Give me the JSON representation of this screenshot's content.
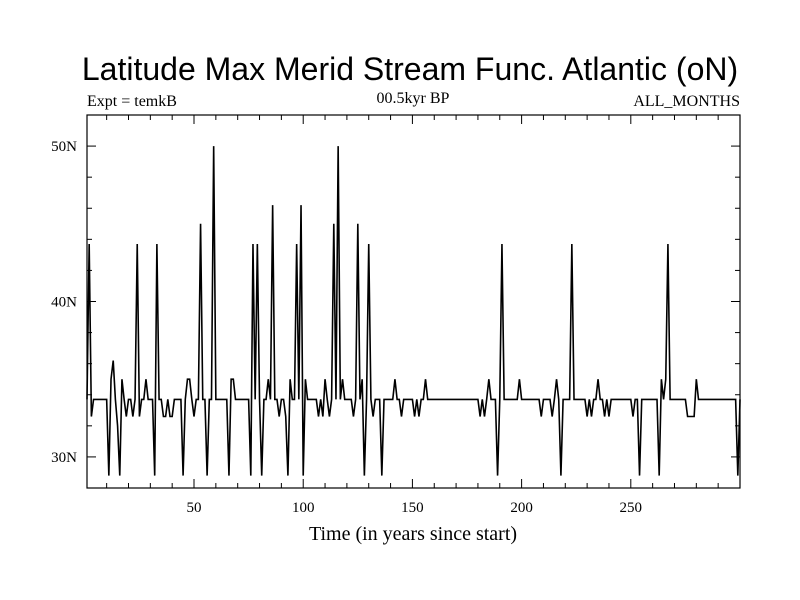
{
  "chart_data": {
    "type": "line",
    "title": "Latitude Max Merid Stream Func. Atlantic (oN)",
    "subtitle_left": "Expt = temkB",
    "subtitle_center": "00.5kyr BP",
    "subtitle_right": "ALL_MONTHS",
    "xlabel": "Time (in years since start)",
    "ylabel": "",
    "xlim": [
      1,
      300
    ],
    "ylim": [
      28,
      52
    ],
    "x_ticks": [
      {
        "value": 50,
        "label": "50"
      },
      {
        "value": 100,
        "label": "100"
      },
      {
        "value": 150,
        "label": "150"
      },
      {
        "value": 200,
        "label": "200"
      },
      {
        "value": 250,
        "label": "250"
      }
    ],
    "y_ticks": [
      {
        "value": 30,
        "label": "30N"
      },
      {
        "value": 40,
        "label": "40N"
      },
      {
        "value": 50,
        "label": "50N"
      }
    ],
    "series": [
      {
        "name": "Latitude Max Merid Stream Func. Atlantic",
        "color": "#000000",
        "points": [
          [
            1,
            33.7
          ],
          [
            2,
            43.7
          ],
          [
            3,
            32.6
          ],
          [
            4,
            33.7
          ],
          [
            5,
            33.7
          ],
          [
            10,
            33.7
          ],
          [
            11,
            28.8
          ],
          [
            12,
            35.0
          ],
          [
            13,
            36.2
          ],
          [
            14,
            33.7
          ],
          [
            15,
            32.0
          ],
          [
            16,
            28.8
          ],
          [
            17,
            35.0
          ],
          [
            18,
            33.7
          ],
          [
            19,
            32.6
          ],
          [
            20,
            33.7
          ],
          [
            21,
            33.7
          ],
          [
            22,
            32.6
          ],
          [
            23,
            33.7
          ],
          [
            24,
            43.7
          ],
          [
            25,
            32.6
          ],
          [
            26,
            33.7
          ],
          [
            27,
            33.7
          ],
          [
            28,
            35.0
          ],
          [
            29,
            33.7
          ],
          [
            30,
            33.7
          ],
          [
            31,
            33.7
          ],
          [
            32,
            28.8
          ],
          [
            33,
            43.7
          ],
          [
            34,
            33.7
          ],
          [
            35,
            33.7
          ],
          [
            36,
            32.6
          ],
          [
            37,
            32.6
          ],
          [
            38,
            33.7
          ],
          [
            39,
            32.6
          ],
          [
            40,
            32.6
          ],
          [
            41,
            33.7
          ],
          [
            42,
            33.7
          ],
          [
            43,
            33.7
          ],
          [
            44,
            33.7
          ],
          [
            45,
            28.8
          ],
          [
            46,
            33.7
          ],
          [
            47,
            35.0
          ],
          [
            48,
            35.0
          ],
          [
            49,
            33.7
          ],
          [
            50,
            32.6
          ],
          [
            51,
            33.7
          ],
          [
            52,
            33.7
          ],
          [
            53,
            45.0
          ],
          [
            54,
            33.7
          ],
          [
            55,
            33.7
          ],
          [
            56,
            28.8
          ],
          [
            57,
            33.7
          ],
          [
            58,
            33.7
          ],
          [
            59,
            50.0
          ],
          [
            60,
            33.7
          ],
          [
            61,
            33.7
          ],
          [
            62,
            33.7
          ],
          [
            63,
            33.7
          ],
          [
            64,
            33.7
          ],
          [
            65,
            33.7
          ],
          [
            66,
            28.8
          ],
          [
            67,
            35.0
          ],
          [
            68,
            35.0
          ],
          [
            69,
            33.7
          ],
          [
            70,
            33.7
          ],
          [
            71,
            33.7
          ],
          [
            72,
            33.7
          ],
          [
            73,
            33.7
          ],
          [
            74,
            33.7
          ],
          [
            75,
            33.7
          ],
          [
            76,
            28.8
          ],
          [
            77,
            43.7
          ],
          [
            78,
            33.7
          ],
          [
            79,
            43.7
          ],
          [
            80,
            33.7
          ],
          [
            81,
            28.8
          ],
          [
            82,
            33.7
          ],
          [
            83,
            33.7
          ],
          [
            84,
            35.0
          ],
          [
            85,
            33.7
          ],
          [
            86,
            46.2
          ],
          [
            87,
            33.7
          ],
          [
            88,
            33.7
          ],
          [
            89,
            32.6
          ],
          [
            90,
            33.7
          ],
          [
            91,
            33.7
          ],
          [
            92,
            32.6
          ],
          [
            93,
            28.8
          ],
          [
            94,
            35.0
          ],
          [
            95,
            33.7
          ],
          [
            96,
            33.7
          ],
          [
            97,
            43.7
          ],
          [
            98,
            33.7
          ],
          [
            99,
            46.2
          ],
          [
            100,
            28.8
          ],
          [
            101,
            35.0
          ],
          [
            102,
            33.7
          ],
          [
            103,
            33.7
          ],
          [
            104,
            33.7
          ],
          [
            105,
            33.7
          ],
          [
            106,
            33.7
          ],
          [
            107,
            32.6
          ],
          [
            108,
            33.7
          ],
          [
            109,
            32.6
          ],
          [
            110,
            35.0
          ],
          [
            111,
            33.7
          ],
          [
            112,
            32.6
          ],
          [
            113,
            33.7
          ],
          [
            114,
            45.0
          ],
          [
            115,
            33.7
          ],
          [
            116,
            50.0
          ],
          [
            117,
            33.7
          ],
          [
            118,
            35.0
          ],
          [
            119,
            33.7
          ],
          [
            120,
            33.7
          ],
          [
            121,
            33.7
          ],
          [
            122,
            33.7
          ],
          [
            123,
            32.6
          ],
          [
            124,
            33.7
          ],
          [
            125,
            45.0
          ],
          [
            126,
            33.7
          ],
          [
            127,
            35.0
          ],
          [
            128,
            28.8
          ],
          [
            129,
            33.7
          ],
          [
            130,
            43.7
          ],
          [
            131,
            33.7
          ],
          [
            132,
            32.6
          ],
          [
            133,
            33.7
          ],
          [
            134,
            33.7
          ],
          [
            135,
            33.7
          ],
          [
            136,
            28.8
          ],
          [
            137,
            33.7
          ],
          [
            138,
            33.7
          ],
          [
            139,
            33.7
          ],
          [
            140,
            33.7
          ],
          [
            141,
            33.7
          ],
          [
            142,
            35.0
          ],
          [
            143,
            33.7
          ],
          [
            144,
            33.7
          ],
          [
            145,
            32.6
          ],
          [
            146,
            33.7
          ],
          [
            147,
            33.7
          ],
          [
            148,
            33.7
          ],
          [
            149,
            33.7
          ],
          [
            150,
            33.7
          ],
          [
            151,
            32.6
          ],
          [
            152,
            33.7
          ],
          [
            153,
            32.6
          ],
          [
            154,
            33.7
          ],
          [
            155,
            33.7
          ],
          [
            156,
            35.0
          ],
          [
            157,
            33.7
          ],
          [
            158,
            33.7
          ],
          [
            159,
            33.7
          ],
          [
            160,
            33.7
          ],
          [
            161,
            33.7
          ],
          [
            162,
            33.7
          ],
          [
            163,
            33.7
          ],
          [
            164,
            33.7
          ],
          [
            165,
            33.7
          ],
          [
            166,
            33.7
          ],
          [
            167,
            33.7
          ],
          [
            168,
            33.7
          ],
          [
            169,
            33.7
          ],
          [
            170,
            33.7
          ],
          [
            171,
            33.7
          ],
          [
            172,
            33.7
          ],
          [
            173,
            33.7
          ],
          [
            174,
            33.7
          ],
          [
            175,
            33.7
          ],
          [
            176,
            33.7
          ],
          [
            177,
            33.7
          ],
          [
            178,
            33.7
          ],
          [
            179,
            33.7
          ],
          [
            180,
            33.7
          ],
          [
            181,
            32.6
          ],
          [
            182,
            33.7
          ],
          [
            183,
            32.6
          ],
          [
            184,
            33.7
          ],
          [
            185,
            35.0
          ],
          [
            186,
            33.7
          ],
          [
            187,
            33.7
          ],
          [
            188,
            33.7
          ],
          [
            189,
            28.8
          ],
          [
            190,
            33.7
          ],
          [
            191,
            43.7
          ],
          [
            192,
            33.7
          ],
          [
            193,
            33.7
          ],
          [
            194,
            33.7
          ],
          [
            195,
            33.7
          ],
          [
            196,
            33.7
          ],
          [
            197,
            33.7
          ],
          [
            198,
            33.7
          ],
          [
            199,
            35.0
          ],
          [
            200,
            33.7
          ],
          [
            201,
            33.7
          ],
          [
            202,
            33.7
          ],
          [
            203,
            33.7
          ],
          [
            204,
            33.7
          ],
          [
            205,
            33.7
          ],
          [
            206,
            33.7
          ],
          [
            207,
            33.7
          ],
          [
            208,
            33.7
          ],
          [
            209,
            32.6
          ],
          [
            210,
            33.7
          ],
          [
            211,
            33.7
          ],
          [
            212,
            33.7
          ],
          [
            213,
            33.7
          ],
          [
            214,
            32.6
          ],
          [
            215,
            33.7
          ],
          [
            216,
            35.0
          ],
          [
            217,
            33.7
          ],
          [
            218,
            28.8
          ],
          [
            219,
            33.7
          ],
          [
            220,
            33.7
          ],
          [
            221,
            33.7
          ],
          [
            222,
            33.7
          ],
          [
            223,
            43.7
          ],
          [
            224,
            33.7
          ],
          [
            225,
            33.7
          ],
          [
            226,
            33.7
          ],
          [
            227,
            33.7
          ],
          [
            228,
            33.7
          ],
          [
            229,
            33.7
          ],
          [
            230,
            32.6
          ],
          [
            231,
            33.7
          ],
          [
            232,
            32.6
          ],
          [
            233,
            33.7
          ],
          [
            234,
            33.7
          ],
          [
            235,
            35.0
          ],
          [
            236,
            33.7
          ],
          [
            237,
            33.7
          ],
          [
            238,
            32.6
          ],
          [
            239,
            33.7
          ],
          [
            240,
            32.6
          ],
          [
            241,
            33.7
          ],
          [
            242,
            33.7
          ],
          [
            243,
            33.7
          ],
          [
            244,
            33.7
          ],
          [
            245,
            33.7
          ],
          [
            246,
            33.7
          ],
          [
            247,
            33.7
          ],
          [
            248,
            33.7
          ],
          [
            249,
            33.7
          ],
          [
            250,
            33.7
          ],
          [
            251,
            32.6
          ],
          [
            252,
            33.7
          ],
          [
            253,
            33.7
          ],
          [
            254,
            28.8
          ],
          [
            255,
            33.7
          ],
          [
            256,
            33.7
          ],
          [
            257,
            33.7
          ],
          [
            258,
            33.7
          ],
          [
            259,
            33.7
          ],
          [
            260,
            33.7
          ],
          [
            261,
            33.7
          ],
          [
            262,
            33.7
          ],
          [
            263,
            28.8
          ],
          [
            264,
            35.0
          ],
          [
            265,
            33.7
          ],
          [
            266,
            35.0
          ],
          [
            267,
            43.7
          ],
          [
            268,
            33.7
          ],
          [
            269,
            33.7
          ],
          [
            270,
            33.7
          ],
          [
            271,
            33.7
          ],
          [
            272,
            33.7
          ],
          [
            273,
            33.7
          ],
          [
            274,
            33.7
          ],
          [
            275,
            33.7
          ],
          [
            276,
            32.6
          ],
          [
            277,
            32.6
          ],
          [
            278,
            32.6
          ],
          [
            279,
            32.6
          ],
          [
            280,
            35.0
          ],
          [
            281,
            33.7
          ],
          [
            282,
            33.7
          ],
          [
            283,
            33.7
          ],
          [
            284,
            33.7
          ],
          [
            285,
            33.7
          ],
          [
            286,
            33.7
          ],
          [
            287,
            33.7
          ],
          [
            288,
            33.7
          ],
          [
            289,
            33.7
          ],
          [
            290,
            33.7
          ],
          [
            291,
            33.7
          ],
          [
            292,
            33.7
          ],
          [
            293,
            33.7
          ],
          [
            294,
            33.7
          ],
          [
            295,
            33.7
          ],
          [
            296,
            33.7
          ],
          [
            297,
            33.7
          ],
          [
            298,
            33.7
          ],
          [
            299,
            28.8
          ],
          [
            300,
            33.7
          ]
        ]
      }
    ]
  }
}
